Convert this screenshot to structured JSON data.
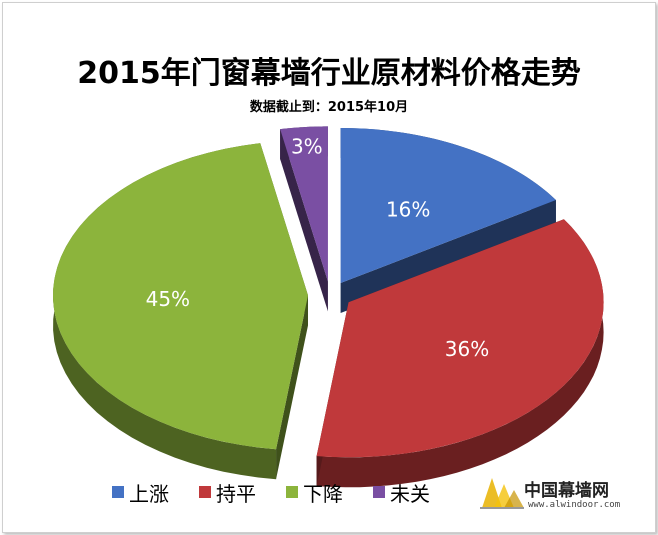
{
  "chart_data": {
    "type": "pie",
    "title": "2015年门窗幕墙行业原材料价格走势",
    "subtitle": "数据截止到：2015年10月",
    "slices": [
      {
        "label": "上涨",
        "value": 16,
        "display": "16%",
        "color": "#4472c4"
      },
      {
        "label": "持平",
        "value": 36,
        "display": "36%",
        "color": "#c0393b"
      },
      {
        "label": "下降",
        "value": 45,
        "display": "45%",
        "color": "#8cb43c"
      },
      {
        "label": "未关",
        "value": 3,
        "display": "3%",
        "color": "#7a4fa3"
      }
    ],
    "legend_position": "bottom",
    "style": "3d-exploded"
  },
  "watermark": {
    "name": "中国幕墙网",
    "url": "www.alwindoor.com"
  }
}
